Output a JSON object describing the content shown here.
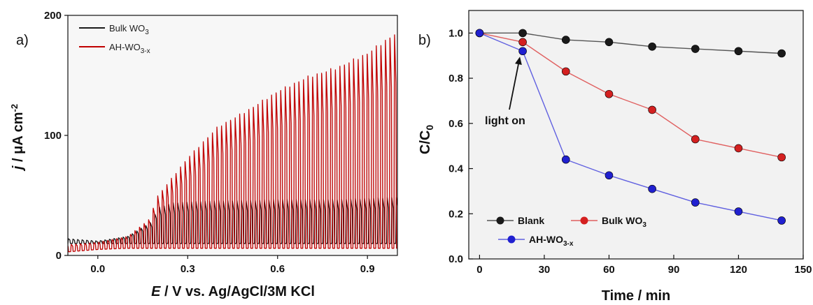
{
  "chart_data": [
    {
      "panel_label": "a)",
      "type": "line",
      "xlabel_italic": "E",
      "xlabel_rest": " / V vs. Ag/AgCl/3M KCl",
      "ylabel_italic": "j",
      "ylabel_rest": " / μA cm",
      "ylabel_sup": "-2",
      "xlim": [
        -0.1,
        1.0
      ],
      "ylim": [
        0,
        200
      ],
      "x_ticks": [
        0.0,
        0.3,
        0.6,
        0.9
      ],
      "x_tick_labels": [
        "0.0",
        "0.3",
        "0.6",
        "0.9"
      ],
      "y_ticks": [
        0,
        100,
        200
      ],
      "y_tick_labels": [
        "0",
        "100",
        "200"
      ],
      "grid": false,
      "legend_position": "top-left",
      "series": [
        {
          "name_main": "Bulk WO",
          "name_sub": "3",
          "color": "#1a1a1a",
          "chopped": true,
          "x": [
            -0.1,
            0.0,
            0.1,
            0.18,
            0.2,
            0.25,
            0.3,
            0.4,
            0.5,
            0.6,
            0.7,
            0.8,
            0.9,
            1.0
          ],
          "on_current": [
            14,
            12,
            16,
            28,
            40,
            44,
            45,
            46,
            46,
            47,
            47,
            47,
            48,
            49
          ],
          "dark_current": [
            10,
            10,
            10,
            10,
            10,
            10,
            10,
            10,
            10,
            10,
            10,
            10,
            10,
            10
          ]
        },
        {
          "name_main": "AH-WO",
          "name_sub": "3-x",
          "color": "#c00000",
          "chopped": true,
          "x": [
            -0.1,
            0.0,
            0.1,
            0.17,
            0.2,
            0.3,
            0.4,
            0.5,
            0.6,
            0.7,
            0.8,
            0.9,
            1.0
          ],
          "on_current": [
            9,
            11,
            16,
            30,
            50,
            82,
            108,
            122,
            138,
            150,
            158,
            170,
            188
          ],
          "dark_current": [
            3,
            5,
            6,
            6,
            6,
            6,
            6,
            6,
            6,
            6,
            6,
            6,
            6
          ]
        }
      ]
    },
    {
      "panel_label": "b)",
      "type": "scatter",
      "xlabel": "Time / min",
      "ylabel_main": "C/C",
      "ylabel_sub": "0",
      "xlim": [
        -5,
        150
      ],
      "ylim": [
        0.0,
        1.1
      ],
      "x_ticks": [
        0,
        30,
        60,
        90,
        120,
        150
      ],
      "x_tick_labels": [
        "0",
        "30",
        "60",
        "90",
        "120",
        "150"
      ],
      "y_ticks": [
        0.0,
        0.2,
        0.4,
        0.6,
        0.8,
        1.0
      ],
      "y_tick_labels": [
        "0.0",
        "0.2",
        "0.4",
        "0.6",
        "0.8",
        "1.0"
      ],
      "grid": false,
      "legend_position": "bottom-left",
      "annotation": {
        "text": "light on",
        "x": 20,
        "y": 0.92
      },
      "series": [
        {
          "name_main": "Blank",
          "name_sub": "",
          "color": "#1a1a1a",
          "line_color": "#555555",
          "x": [
            0,
            20,
            40,
            60,
            80,
            100,
            120,
            140
          ],
          "values": [
            1.0,
            1.0,
            0.97,
            0.96,
            0.94,
            0.93,
            0.92,
            0.91
          ]
        },
        {
          "name_main": "Bulk WO",
          "name_sub": "3",
          "color": "#d42020",
          "line_color": "#e06060",
          "x": [
            0,
            20,
            40,
            60,
            80,
            100,
            120,
            140
          ],
          "values": [
            1.0,
            0.96,
            0.83,
            0.73,
            0.66,
            0.53,
            0.49,
            0.45
          ]
        },
        {
          "name_main": "AH-WO",
          "name_sub": "3-x",
          "color": "#2020d0",
          "line_color": "#6060e0",
          "x": [
            0,
            20,
            40,
            60,
            80,
            100,
            120,
            140
          ],
          "values": [
            1.0,
            0.92,
            0.44,
            0.37,
            0.31,
            0.25,
            0.21,
            0.17
          ]
        }
      ]
    }
  ]
}
